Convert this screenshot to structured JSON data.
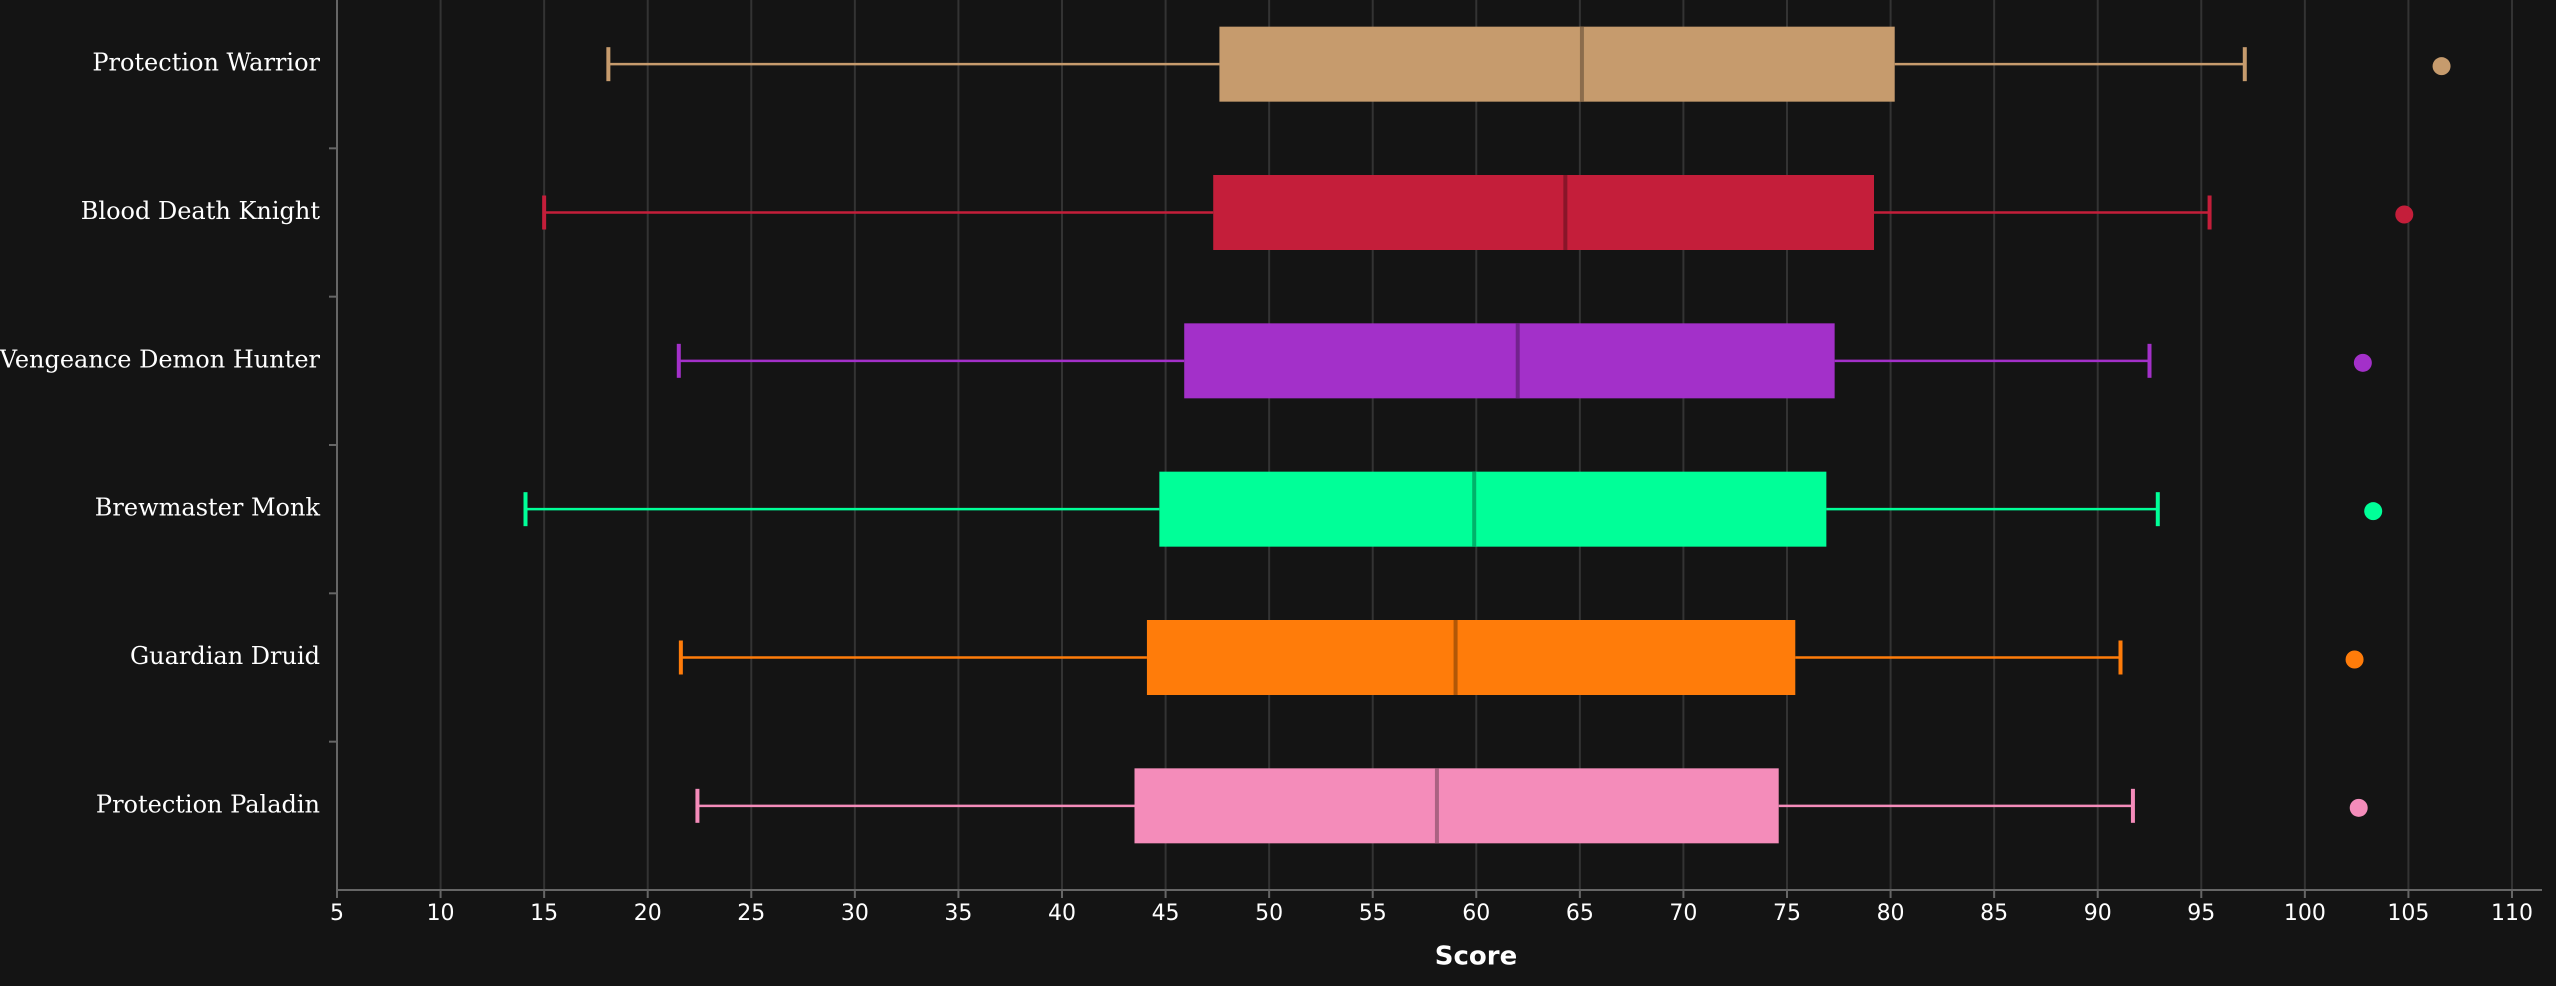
{
  "chart_data": {
    "type": "box",
    "orientation": "horizontal",
    "x_label": "Score",
    "xlim": [
      5,
      110
    ],
    "xticks": [
      5,
      10,
      15,
      20,
      25,
      30,
      35,
      40,
      45,
      50,
      55,
      60,
      65,
      70,
      75,
      80,
      85,
      90,
      95,
      100,
      105,
      110
    ],
    "grid": true,
    "boxes": [
      {
        "name": "Protection Warrior",
        "color": "#C69B6D",
        "whisker_low": 18.1,
        "q1": 47.6,
        "median": 65.1,
        "q3": 80.2,
        "whisker_high": 97.1,
        "outliers": [
          106.6
        ]
      },
      {
        "name": "Blood Death Knight",
        "color": "#C41E3A",
        "whisker_low": 15.0,
        "q1": 47.3,
        "median": 64.3,
        "q3": 79.2,
        "whisker_high": 95.4,
        "outliers": [
          104.8
        ]
      },
      {
        "name": "Vengeance Demon Hunter",
        "color": "#A330C9",
        "whisker_low": 21.5,
        "q1": 45.9,
        "median": 62.0,
        "q3": 77.3,
        "whisker_high": 92.5,
        "outliers": [
          102.8
        ]
      },
      {
        "name": "Brewmaster Monk",
        "color": "#00FF98",
        "whisker_low": 14.1,
        "q1": 44.7,
        "median": 59.9,
        "q3": 76.9,
        "whisker_high": 92.9,
        "outliers": [
          103.3
        ]
      },
      {
        "name": "Guardian Druid",
        "color": "#FF7C0A",
        "whisker_low": 21.6,
        "q1": 44.1,
        "median": 59.0,
        "q3": 75.4,
        "whisker_high": 91.1,
        "outliers": [
          102.4
        ]
      },
      {
        "name": "Protection Paladin",
        "color": "#F48CBA",
        "whisker_low": 22.4,
        "q1": 43.5,
        "median": 58.1,
        "q3": 74.6,
        "whisker_high": 91.7,
        "outliers": [
          102.6
        ]
      }
    ]
  }
}
